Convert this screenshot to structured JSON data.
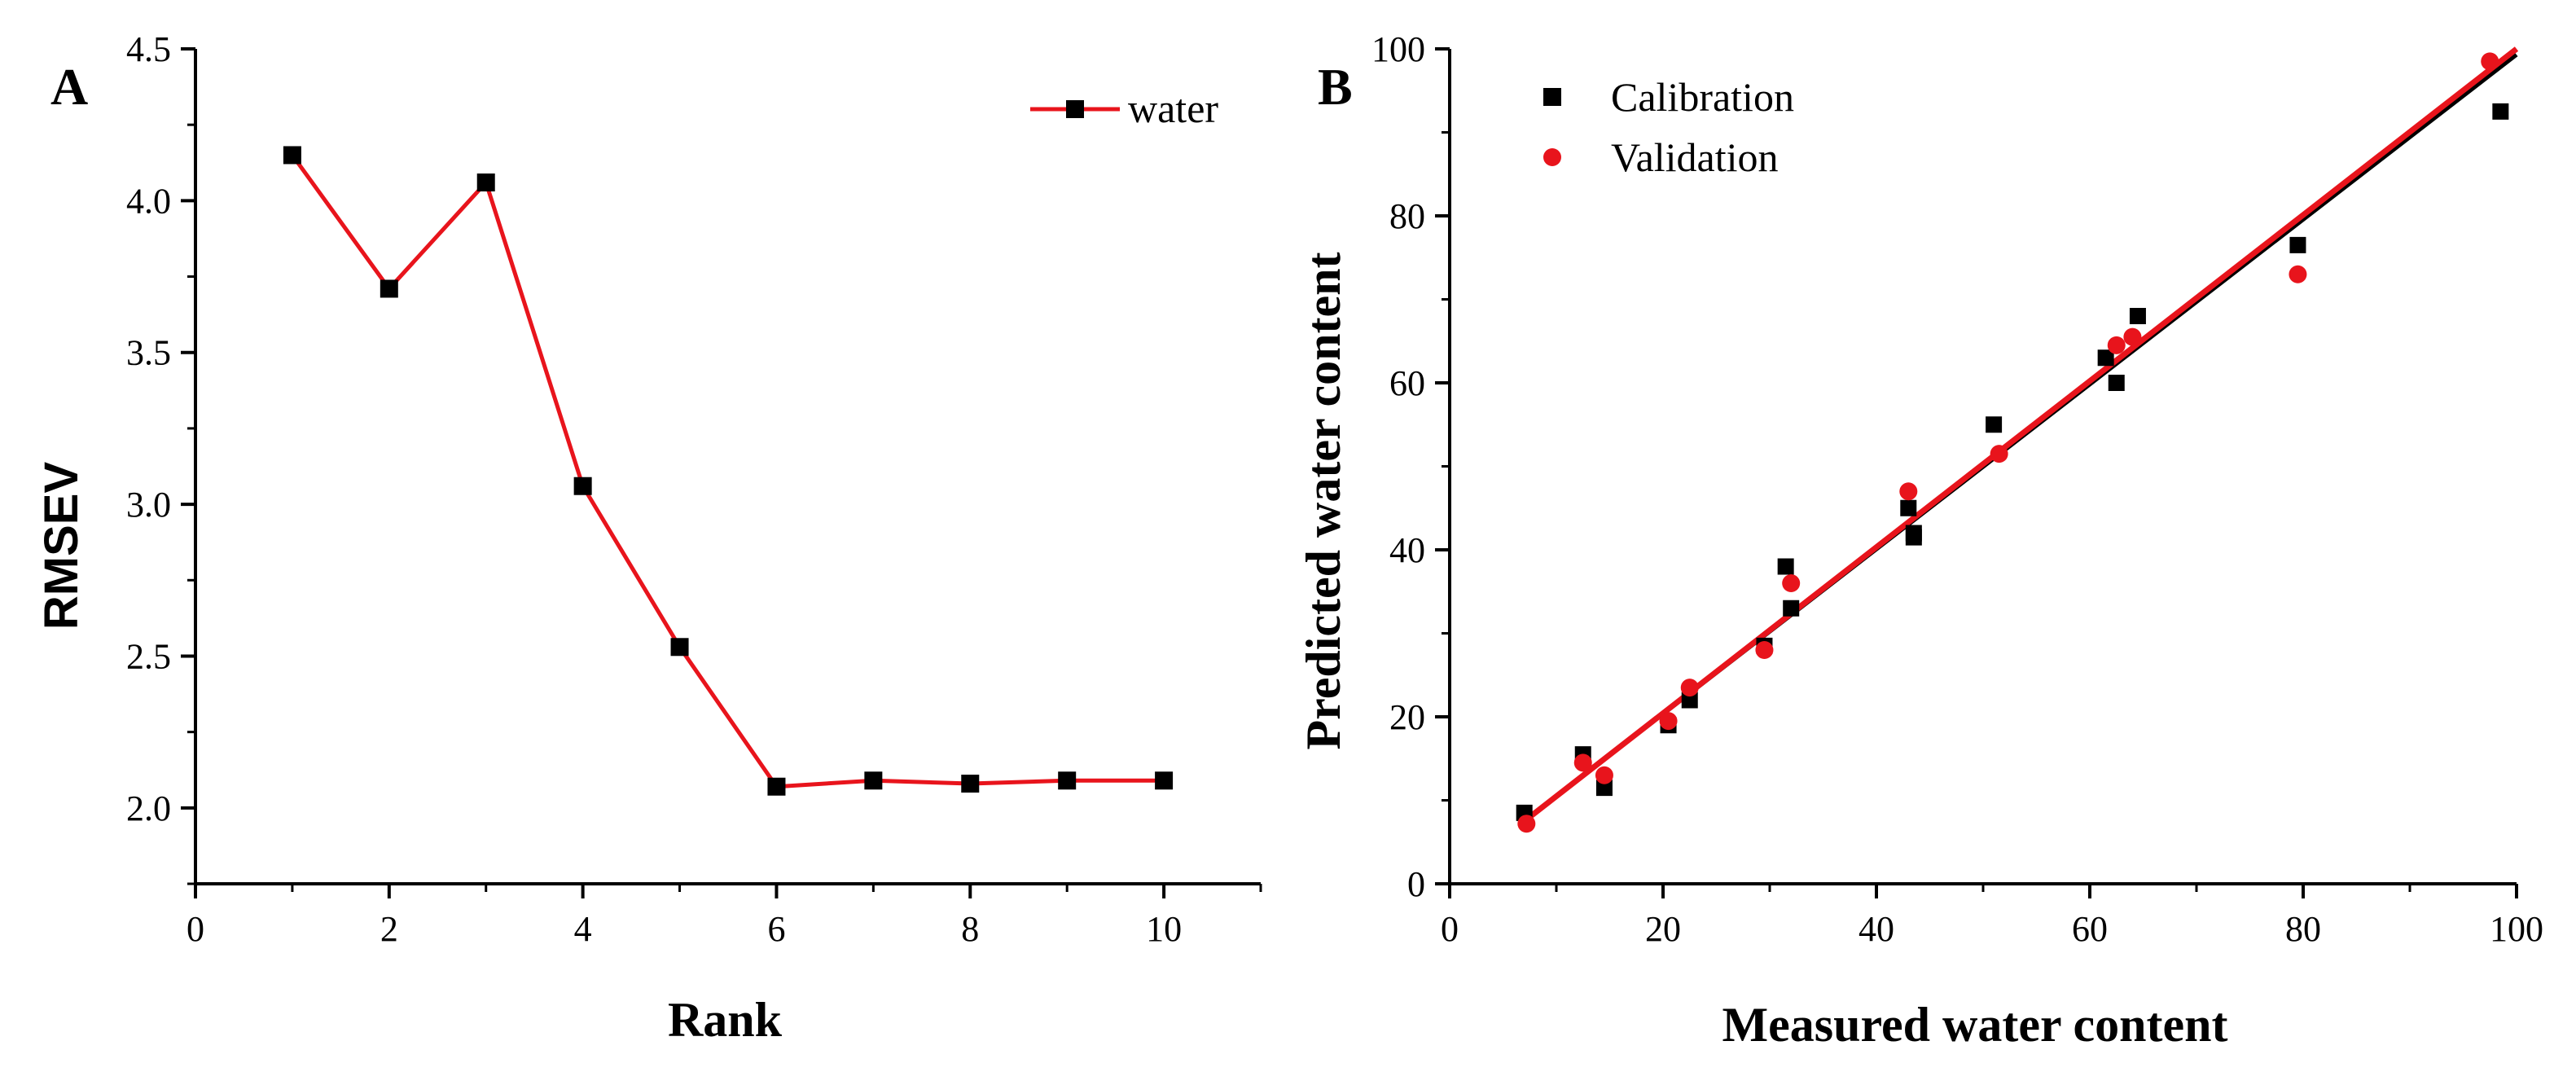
{
  "chart_data": [
    {
      "panel": "A",
      "type": "line",
      "title": "",
      "xlabel": "Rank",
      "ylabel": "RMSEV",
      "xlim": [
        0,
        11
      ],
      "ylim": [
        1.75,
        4.5
      ],
      "xticks": [
        0,
        2,
        4,
        6,
        8,
        10
      ],
      "xtick_labels": [
        "0",
        "2",
        "4",
        "6",
        "8",
        "10"
      ],
      "yticks": [
        2.0,
        2.5,
        3.0,
        3.5,
        4.0,
        4.5
      ],
      "ytick_labels": [
        "2.0",
        "2.5",
        "3.0",
        "3.5",
        "4.0",
        "4.5"
      ],
      "legend_position": "top-right",
      "series": [
        {
          "name": "water",
          "line_color": "#e8141c",
          "marker_color": "#000000",
          "marker": "square",
          "x": [
            1,
            2,
            3,
            4,
            5,
            6,
            7,
            8,
            9,
            10
          ],
          "y": [
            4.15,
            3.71,
            4.06,
            3.06,
            2.53,
            2.07,
            2.09,
            2.08,
            2.09,
            2.09
          ]
        }
      ]
    },
    {
      "panel": "B",
      "type": "scatter",
      "title": "",
      "xlabel": "Measured water content",
      "ylabel": "Predicted water content",
      "xlim": [
        0,
        100
      ],
      "ylim": [
        0,
        100
      ],
      "xticks": [
        0,
        20,
        40,
        60,
        80,
        100
      ],
      "xtick_labels": [
        "0",
        "20",
        "40",
        "60",
        "80",
        "100"
      ],
      "yticks": [
        0,
        20,
        40,
        60,
        80,
        100
      ],
      "ytick_labels": [
        "0",
        "20",
        "40",
        "60",
        "80",
        "100"
      ],
      "legend_position": "top-left",
      "series": [
        {
          "name": "Calibration",
          "color": "#000000",
          "marker": "square",
          "fit_line": {
            "x": [
              7,
              100
            ],
            "y": [
              7.5,
              99.3
            ]
          },
          "x": [
            7,
            12.5,
            14.5,
            20.5,
            22.5,
            29.5,
            31.5,
            32,
            43,
            43.5,
            43.5,
            51,
            61.5,
            62.5,
            64.5,
            79.5,
            98.5
          ],
          "y": [
            8.5,
            15.5,
            11.5,
            19,
            22,
            28.5,
            38,
            33,
            45,
            42,
            41.5,
            55,
            63,
            60,
            68,
            76.5,
            92.5
          ]
        },
        {
          "name": "Validation",
          "color": "#e8141c",
          "marker": "circle",
          "fit_line": {
            "x": [
              7,
              100
            ],
            "y": [
              7.5,
              100
            ]
          },
          "x": [
            7.2,
            12.5,
            14.5,
            20.5,
            22.5,
            29.5,
            32,
            43,
            51.5,
            62.5,
            64,
            79.5,
            97.5
          ],
          "y": [
            7.2,
            14.5,
            13,
            19.5,
            23.5,
            28,
            36,
            47,
            51.5,
            64.5,
            65.5,
            73,
            98.5
          ]
        }
      ]
    }
  ]
}
